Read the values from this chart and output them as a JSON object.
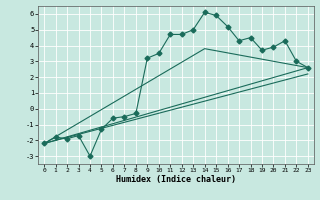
{
  "title": "",
  "xlabel": "Humidex (Indice chaleur)",
  "ylabel": "",
  "bg_color": "#c8e8e0",
  "grid_color": "#ffffff",
  "line_color": "#1a6b5a",
  "xlim": [
    -0.5,
    23.5
  ],
  "ylim": [
    -3.5,
    6.5
  ],
  "xticks": [
    0,
    1,
    2,
    3,
    4,
    5,
    6,
    7,
    8,
    9,
    10,
    11,
    12,
    13,
    14,
    15,
    16,
    17,
    18,
    19,
    20,
    21,
    22,
    23
  ],
  "yticks": [
    -3,
    -2,
    -1,
    0,
    1,
    2,
    3,
    4,
    5,
    6
  ],
  "line1_x": [
    0,
    1,
    2,
    3,
    4,
    5,
    6,
    7,
    8,
    9,
    10,
    11,
    12,
    13,
    14,
    15,
    16,
    17,
    18,
    19,
    20,
    21,
    22,
    23
  ],
  "line1_y": [
    -2.2,
    -1.8,
    -1.9,
    -1.7,
    -3.0,
    -1.3,
    -0.6,
    -0.5,
    -0.3,
    3.2,
    3.5,
    4.7,
    4.7,
    5.0,
    6.1,
    5.9,
    5.2,
    4.3,
    4.5,
    3.7,
    3.9,
    4.3,
    3.0,
    2.6
  ],
  "line2_x": [
    0,
    14,
    23
  ],
  "line2_y": [
    -2.2,
    3.8,
    2.6
  ],
  "line3_x": [
    0,
    23
  ],
  "line3_y": [
    -2.2,
    2.6
  ],
  "line4_x": [
    0,
    23
  ],
  "line4_y": [
    -2.2,
    2.2
  ],
  "marker": "D",
  "marker_size": 2.5,
  "linewidth": 0.8
}
